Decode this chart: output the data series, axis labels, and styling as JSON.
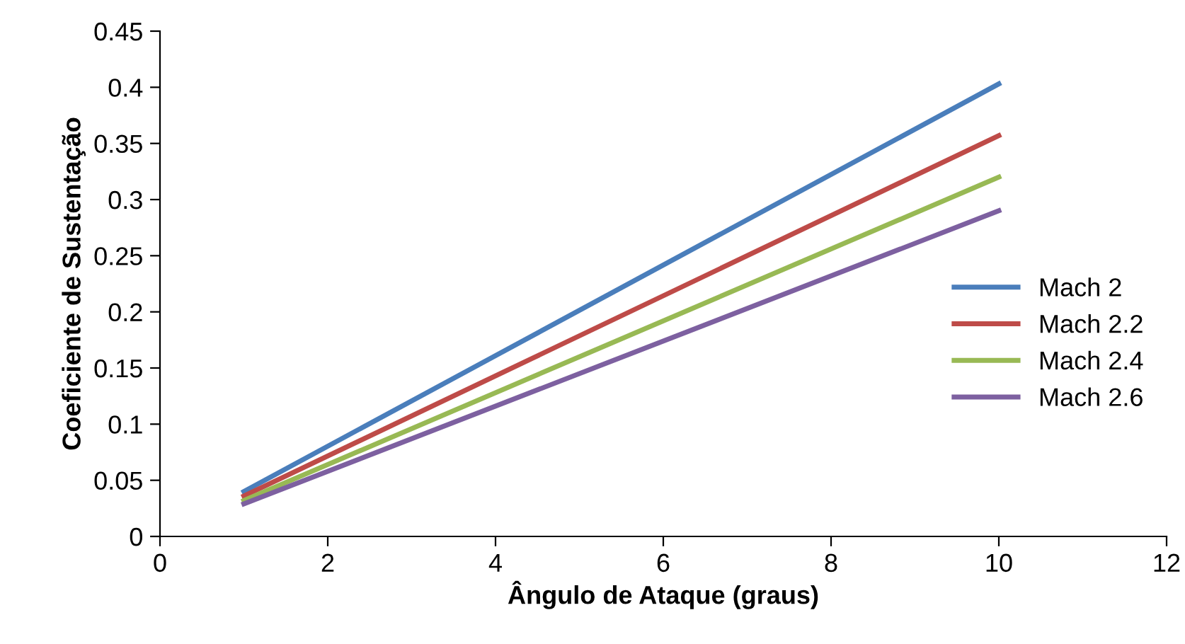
{
  "chart_data": {
    "type": "line",
    "xlabel": "Ângulo de Ataque (graus)",
    "ylabel": "Coeficiente de Sustentação",
    "xlim": [
      0,
      12
    ],
    "xticks": [
      0,
      2,
      4,
      6,
      8,
      10,
      12
    ],
    "ylim": [
      0,
      0.45
    ],
    "yticks": [
      0,
      0.05,
      0.1,
      0.15,
      0.2,
      0.25,
      0.3,
      0.35,
      0.4,
      0.45
    ],
    "grid": false,
    "legend": "right",
    "marker": "none",
    "line_style": "solid",
    "x": [
      1,
      10
    ],
    "series": [
      {
        "name": "Mach 2",
        "color": "#4a7ebb",
        "values": [
          0.04,
          0.403
        ]
      },
      {
        "name": "Mach 2.2",
        "color": "#be4b48",
        "values": [
          0.036,
          0.357
        ]
      },
      {
        "name": "Mach 2.4",
        "color": "#98b954",
        "values": [
          0.032,
          0.32
        ]
      },
      {
        "name": "Mach 2.6",
        "color": "#7d60a0",
        "values": [
          0.029,
          0.29
        ]
      }
    ]
  }
}
